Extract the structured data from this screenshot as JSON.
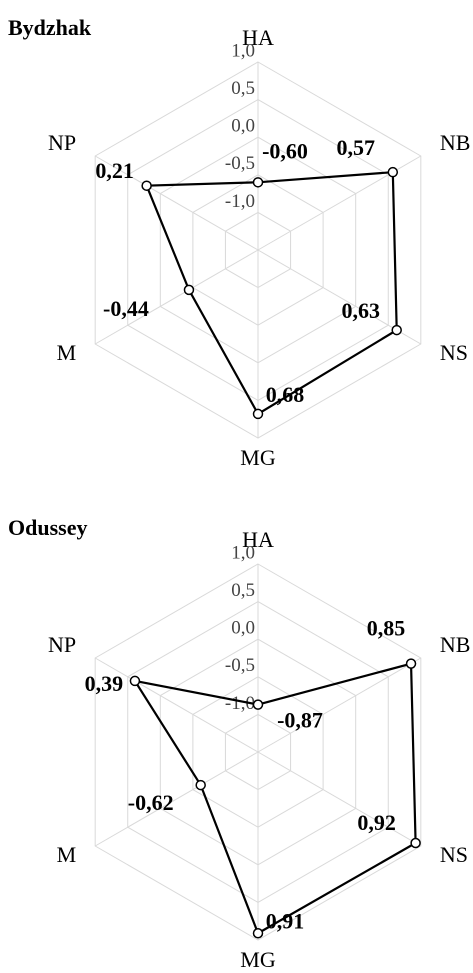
{
  "chart_data": [
    {
      "type": "radar",
      "title": "Bydzhak",
      "categories": [
        "HA",
        "NB",
        "NS",
        "MG",
        "M",
        "NP"
      ],
      "values": [
        -0.6,
        0.57,
        0.63,
        0.68,
        -0.44,
        0.21
      ],
      "value_labels": [
        "-0,60",
        "0,57",
        "0,63",
        "0,68",
        "-0,44",
        "0,21"
      ],
      "color": "#000000",
      "ylim": [
        -1.5,
        1.0
      ],
      "yticks": [
        {
          "value": 1.0,
          "label": "1,0"
        },
        {
          "value": 0.5,
          "label": "0,5"
        },
        {
          "value": 0.0,
          "label": "0,0"
        },
        {
          "value": -0.5,
          "label": "-0,5"
        },
        {
          "value": -1.0,
          "label": "-1,0"
        }
      ],
      "grid": true
    },
    {
      "type": "radar",
      "title": "Odussey",
      "categories": [
        "HA",
        "NB",
        "NS",
        "MG",
        "M",
        "NP"
      ],
      "values": [
        -0.87,
        0.85,
        0.92,
        0.91,
        -0.62,
        0.39
      ],
      "value_labels": [
        "-0,87",
        "0,85",
        "0,92",
        "0,91",
        "-0,62",
        "0,39"
      ],
      "color": "#000000",
      "ylim": [
        -1.5,
        1.0
      ],
      "yticks": [
        {
          "value": 1.0,
          "label": "1,0"
        },
        {
          "value": 0.5,
          "label": "0,5"
        },
        {
          "value": 0.0,
          "label": "0,0"
        },
        {
          "value": -0.5,
          "label": "-0,5"
        },
        {
          "value": -1.0,
          "label": "-1,0"
        }
      ],
      "grid": true
    }
  ]
}
